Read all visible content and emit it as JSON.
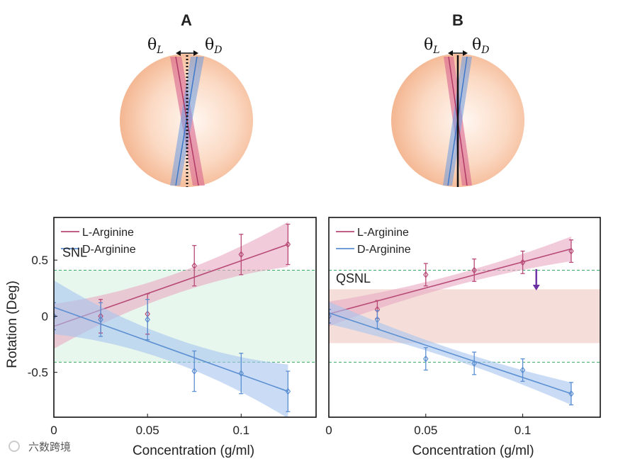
{
  "panels": [
    {
      "label": "A",
      "theta_left": "θ",
      "theta_left_sub": "L",
      "theta_right": "θ",
      "theta_right_sub": "D",
      "reference_line": "dotted"
    },
    {
      "label": "B",
      "theta_left": "θ",
      "theta_left_sub": "L",
      "theta_right": "θ",
      "theta_right_sub": "D",
      "reference_line": "solid"
    }
  ],
  "colors": {
    "l_line": "#b84a76",
    "l_band": "#e7a9c2",
    "d_line": "#5b8fd2",
    "d_band": "#a6c4ef",
    "snl_text": "#1fa34a",
    "snl_band": "#e6f6ec",
    "qsnl_text": "#e2aaa0",
    "qsnl_band": "#f1d3cc",
    "arrow": "#6a2fa0",
    "sphere_edge": "#f1b38f",
    "sphere_center": "#fff6f0"
  },
  "watermark": {
    "text": "六数跨境"
  },
  "chart_data": [
    {
      "type": "line",
      "xlabel": "Concentration (g/ml)",
      "ylabel": "Rotation (Deg)",
      "xlim": [
        0,
        0.14
      ],
      "ylim": [
        -0.9,
        0.88
      ],
      "xticks": [
        0,
        0.05,
        0.1
      ],
      "xtick_labels": [
        "0",
        "0.05",
        "0.1"
      ],
      "yticks": [
        -0.5,
        0,
        0.5
      ],
      "ytick_labels": [
        "-0.5",
        "0",
        "0.5"
      ],
      "limit_label": "SNL",
      "limit_band": [
        -0.41,
        0.41
      ],
      "legend": [
        "L-Arginine",
        "D-Arginine"
      ],
      "series": [
        {
          "name": "L-Arginine",
          "x": [
            0,
            0.025,
            0.05,
            0.075,
            0.1,
            0.125
          ],
          "y": [
            0,
            0.0,
            0.02,
            0.45,
            0.55,
            0.64
          ],
          "err": [
            0.12,
            0.15,
            0.18,
            0.18,
            0.18,
            0.18
          ],
          "fit": [
            -0.09,
            0.64
          ],
          "band_half": [
            0.2,
            0.2
          ]
        },
        {
          "name": "D-Arginine",
          "x": [
            0,
            0.025,
            0.05,
            0.075,
            0.1,
            0.125
          ],
          "y": [
            0,
            -0.03,
            -0.03,
            -0.49,
            -0.51,
            -0.67
          ],
          "err": [
            0.12,
            0.15,
            0.18,
            0.18,
            0.18,
            0.18
          ],
          "fit": [
            0.08,
            -0.67
          ],
          "band_half": [
            0.24,
            0.24
          ]
        }
      ]
    },
    {
      "type": "line",
      "xlabel": "Concentration (g/ml)",
      "ylabel": "",
      "xlim": [
        0,
        0.14
      ],
      "ylim": [
        -0.9,
        0.88
      ],
      "xticks": [
        0,
        0.05,
        0.1
      ],
      "xtick_labels": [
        "0",
        "0.05",
        "0.1"
      ],
      "yticks": [],
      "ytick_labels": [],
      "limit_label": "QSNL",
      "limit_band": [
        -0.24,
        0.24
      ],
      "snl_lines": [
        -0.41,
        0.41
      ],
      "legend": [
        "L-Arginine",
        "D-Arginine"
      ],
      "series": [
        {
          "name": "L-Arginine",
          "x": [
            0,
            0.025,
            0.05,
            0.075,
            0.1,
            0.125
          ],
          "y": [
            0,
            0.06,
            0.37,
            0.41,
            0.48,
            0.58
          ],
          "err": [
            0.06,
            0.08,
            0.1,
            0.1,
            0.1,
            0.1
          ],
          "fit": [
            0.02,
            0.6
          ],
          "band_half": [
            0.11,
            0.11
          ]
        },
        {
          "name": "D-Arginine",
          "x": [
            0,
            0.025,
            0.05,
            0.075,
            0.1,
            0.125
          ],
          "y": [
            0,
            -0.03,
            -0.38,
            -0.42,
            -0.48,
            -0.69
          ],
          "err": [
            0.06,
            0.08,
            0.1,
            0.1,
            0.1,
            0.1
          ],
          "fit": [
            0.03,
            -0.69
          ],
          "band_half": [
            0.1,
            0.1
          ]
        }
      ]
    }
  ]
}
